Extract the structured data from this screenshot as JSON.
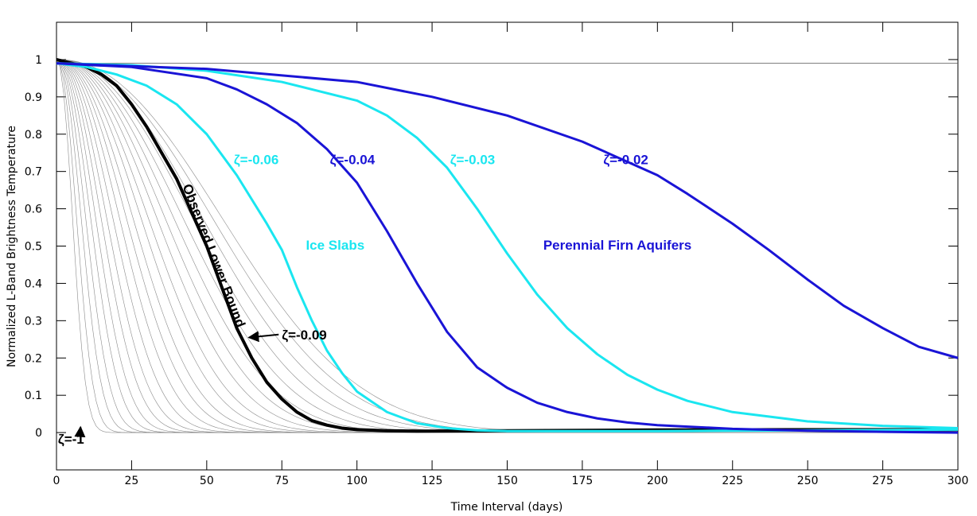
{
  "chart_data": {
    "type": "line",
    "xlabel": "Time Interval  (days)",
    "ylabel": "Normalized L-Band Brightness Temperature",
    "xlim": [
      0,
      300
    ],
    "ylim": [
      -0.1,
      1.1
    ],
    "xticks": [
      0,
      25,
      50,
      75,
      100,
      125,
      150,
      175,
      200,
      225,
      250,
      275,
      300
    ],
    "yticks": [
      0,
      0.1,
      0.2,
      0.3,
      0.4,
      0.5,
      0.6,
      0.7,
      0.8,
      0.9,
      1
    ],
    "x_tick_labels": [
      "0",
      "25",
      "50",
      "75",
      "100",
      "125",
      "150",
      "175",
      "200",
      "225",
      "250",
      "275",
      "300"
    ],
    "y_tick_labels": [
      "0",
      "0.1",
      "0.2",
      "0.3",
      "0.4",
      "0.5",
      "0.6",
      "0.7",
      "0.8",
      "0.9",
      "1"
    ],
    "reference_line_y": 0.99,
    "colors": {
      "gray": "#8a8a8a",
      "black": "#000000",
      "cyan": "#1ae6f0",
      "blue": "#1a14d6"
    },
    "series": [
      {
        "color": "black",
        "points": [
          [
            0,
            1
          ],
          [
            5,
            0.99
          ],
          [
            10,
            0.98
          ],
          [
            15,
            0.96
          ],
          [
            20,
            0.93
          ],
          [
            25,
            0.88
          ],
          [
            30,
            0.82
          ],
          [
            35,
            0.75
          ],
          [
            40,
            0.68
          ],
          [
            45,
            0.59
          ],
          [
            50,
            0.5
          ],
          [
            55,
            0.39
          ],
          [
            60,
            0.28
          ],
          [
            65,
            0.2
          ],
          [
            70,
            0.135
          ],
          [
            75,
            0.09
          ],
          [
            80,
            0.055
          ],
          [
            85,
            0.032
          ],
          [
            90,
            0.02
          ],
          [
            95,
            0.012
          ],
          [
            100,
            0.008
          ],
          [
            110,
            0.005
          ],
          [
            120,
            0.004
          ],
          [
            150,
            0.005
          ],
          [
            200,
            0.007
          ],
          [
            250,
            0.008
          ],
          [
            300,
            0.008
          ]
        ]
      },
      {
        "color": "cyan",
        "points": [
          [
            0,
            0.99
          ],
          [
            10,
            0.98
          ],
          [
            20,
            0.96
          ],
          [
            30,
            0.93
          ],
          [
            40,
            0.88
          ],
          [
            50,
            0.8
          ],
          [
            60,
            0.69
          ],
          [
            70,
            0.56
          ],
          [
            75,
            0.49
          ],
          [
            80,
            0.39
          ],
          [
            85,
            0.3
          ],
          [
            90,
            0.22
          ],
          [
            95,
            0.16
          ],
          [
            100,
            0.11
          ],
          [
            110,
            0.055
          ],
          [
            120,
            0.025
          ],
          [
            130,
            0.012
          ],
          [
            140,
            0.006
          ],
          [
            150,
            0.004
          ],
          [
            200,
            0.004
          ],
          [
            250,
            0.006
          ],
          [
            300,
            0.008
          ]
        ]
      },
      {
        "color": "blue",
        "points": [
          [
            0,
            0.99
          ],
          [
            25,
            0.98
          ],
          [
            50,
            0.95
          ],
          [
            60,
            0.92
          ],
          [
            70,
            0.88
          ],
          [
            80,
            0.83
          ],
          [
            90,
            0.76
          ],
          [
            100,
            0.67
          ],
          [
            110,
            0.54
          ],
          [
            115,
            0.47
          ],
          [
            120,
            0.4
          ],
          [
            130,
            0.27
          ],
          [
            140,
            0.175
          ],
          [
            150,
            0.12
          ],
          [
            160,
            0.08
          ],
          [
            170,
            0.055
          ],
          [
            180,
            0.038
          ],
          [
            190,
            0.027
          ],
          [
            200,
            0.02
          ],
          [
            225,
            0.01
          ],
          [
            250,
            0.005
          ],
          [
            275,
            0.002
          ],
          [
            300,
            0
          ]
        ]
      },
      {
        "color": "cyan",
        "points": [
          [
            0,
            0.99
          ],
          [
            25,
            0.985
          ],
          [
            50,
            0.97
          ],
          [
            75,
            0.94
          ],
          [
            100,
            0.89
          ],
          [
            110,
            0.85
          ],
          [
            120,
            0.79
          ],
          [
            130,
            0.71
          ],
          [
            140,
            0.6
          ],
          [
            150,
            0.48
          ],
          [
            160,
            0.37
          ],
          [
            170,
            0.28
          ],
          [
            180,
            0.21
          ],
          [
            190,
            0.155
          ],
          [
            200,
            0.115
          ],
          [
            210,
            0.085
          ],
          [
            225,
            0.055
          ],
          [
            250,
            0.03
          ],
          [
            275,
            0.018
          ],
          [
            300,
            0.012
          ]
        ]
      },
      {
        "color": "blue",
        "points": [
          [
            0,
            0.99
          ],
          [
            50,
            0.975
          ],
          [
            100,
            0.94
          ],
          [
            125,
            0.9
          ],
          [
            150,
            0.85
          ],
          [
            175,
            0.78
          ],
          [
            200,
            0.69
          ],
          [
            210,
            0.64
          ],
          [
            225,
            0.56
          ],
          [
            237,
            0.49
          ],
          [
            250,
            0.41
          ],
          [
            262,
            0.34
          ],
          [
            275,
            0.28
          ],
          [
            287,
            0.23
          ],
          [
            300,
            0.2
          ]
        ]
      }
    ],
    "gray_curve_k_values": [
      1,
      0.8,
      0.65,
      0.55,
      0.47,
      0.41,
      0.36,
      0.32,
      0.285,
      0.255,
      0.23,
      0.21,
      0.19,
      0.175,
      0.16,
      0.148,
      0.137,
      0.127,
      0.118,
      0.11,
      0.103,
      0.097
    ],
    "annotations": [
      {
        "text": "ζ=-0.06",
        "x": 59,
        "y": 0.72,
        "color": "cyan"
      },
      {
        "text": "ζ=-0.04",
        "x": 91,
        "y": 0.72,
        "color": "blue"
      },
      {
        "text": "ζ=-0.03",
        "x": 131,
        "y": 0.72,
        "color": "cyan"
      },
      {
        "text": "ζ=-0.02",
        "x": 182,
        "y": 0.72,
        "color": "blue"
      },
      {
        "text": "Ice Slabs",
        "x": 83,
        "y": 0.49,
        "color": "cyan"
      },
      {
        "text": "Perennial Firn Aquifers",
        "x": 162,
        "y": 0.49,
        "color": "blue"
      },
      {
        "text": "Observed Lower Bound",
        "x": 51,
        "y": 0.47,
        "color": "black",
        "rotation": 69
      },
      {
        "text": "ζ=-0.09",
        "x": 75,
        "y": 0.25,
        "color": "black",
        "arrow_to": [
          64,
          0.255
        ]
      },
      {
        "text": "ζ=-1",
        "x": 0.5,
        "y": -0.03,
        "color": "black",
        "arrow_to": [
          8,
          0.015
        ]
      }
    ]
  }
}
